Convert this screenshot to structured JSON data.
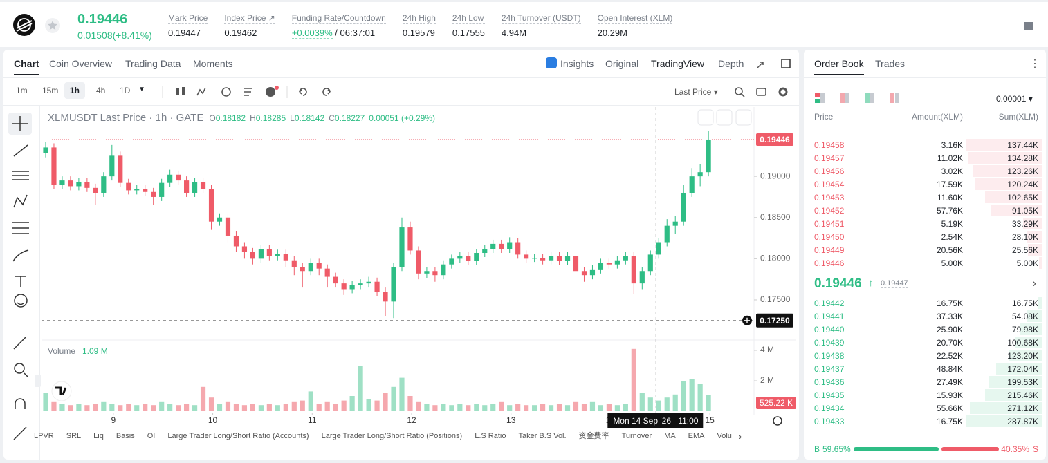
{
  "header": {
    "price": "0.19446",
    "change": "0.01508(+8.41%)",
    "stats": [
      {
        "label": "Mark Price",
        "value": "0.19447"
      },
      {
        "label": "Index Price ↗",
        "value": "0.19462"
      },
      {
        "label": "Funding Rate/Countdown",
        "value": "+0.0039%",
        "extra": " / 06:37:01"
      },
      {
        "label": "24h High",
        "value": "0.19579"
      },
      {
        "label": "24h Low",
        "value": "0.17555"
      },
      {
        "label": "24h Turnover (USDT)",
        "value": "4.94M"
      },
      {
        "label": "Open Interest (XLM)",
        "value": "20.29M"
      }
    ]
  },
  "chart_tabs": [
    "Chart",
    "Coin Overview",
    "Trading Data",
    "Moments"
  ],
  "view_tabs": [
    "Insights",
    "Original",
    "TradingView",
    "Depth"
  ],
  "intervals": [
    "1m",
    "15m",
    "1h",
    "4h",
    "1D"
  ],
  "price_source": "Last Price",
  "indicators": [
    "LPVR",
    "SRL",
    "Liq",
    "Basis",
    "OI",
    "Large Trader Long/Short Ratio (Accounts)",
    "Large Trader Long/Short Ratio (Positions)",
    "L.S Ratio",
    "Taker B.S Vol.",
    "资金费率",
    "Turnover",
    "MA",
    "EMA",
    "Volu"
  ],
  "chart_data": {
    "type": "candlestick",
    "title": "XLMUSDT Last Price · 1h · GATE",
    "ohlc_legend": [
      {
        "label": "O",
        "value": "0.18182"
      },
      {
        "label": "H",
        "value": "0.18285"
      },
      {
        "label": "L",
        "value": "0.18142"
      },
      {
        "label": "C",
        "value": "0.18227"
      }
    ],
    "legend_change": "0.00051 (+0.29%)",
    "up_color": "#2ebd85",
    "down_color": "#ef5b68",
    "open": [
      0.1928,
      0.1935,
      0.189,
      0.1895,
      0.1888,
      0.1893,
      0.1886,
      0.188,
      0.19,
      0.1925,
      0.1892,
      0.1883,
      0.1885,
      0.1881,
      0.1875,
      0.1892,
      0.1902,
      0.1895,
      0.188,
      0.1893,
      0.1885,
      0.1845,
      0.185,
      0.1828,
      0.1815,
      0.1808,
      0.18,
      0.1812,
      0.1803,
      0.1806,
      0.1798,
      0.179,
      0.1785,
      0.1795,
      0.1788,
      0.1778,
      0.177,
      0.1763,
      0.1768,
      0.177,
      0.1772,
      0.176,
      0.1748,
      0.179,
      0.1838,
      0.181,
      0.1782,
      0.1785,
      0.178,
      0.1793,
      0.18,
      0.1803,
      0.1797,
      0.1807,
      0.1812,
      0.1818,
      0.1812,
      0.182,
      0.1805,
      0.18,
      0.1801,
      0.1798,
      0.1803,
      0.1797,
      0.1803,
      0.1785,
      0.178,
      0.1787,
      0.1795,
      0.1793,
      0.1798,
      0.1803,
      0.177,
      0.1785,
      0.1805,
      0.182,
      0.184,
      0.1845,
      0.188,
      0.19,
      0.1905
    ],
    "high": [
      0.1942,
      0.194,
      0.19,
      0.19,
      0.1898,
      0.1898,
      0.1891,
      0.1905,
      0.1938,
      0.193,
      0.1897,
      0.189,
      0.189,
      0.1886,
      0.1897,
      0.1908,
      0.1907,
      0.19,
      0.1898,
      0.1898,
      0.189,
      0.1855,
      0.1855,
      0.1833,
      0.182,
      0.1813,
      0.1817,
      0.1817,
      0.1811,
      0.1811,
      0.1803,
      0.1795,
      0.18,
      0.18,
      0.1793,
      0.1783,
      0.1775,
      0.1773,
      0.1775,
      0.1778,
      0.1777,
      0.1765,
      0.1795,
      0.185,
      0.1845,
      0.1815,
      0.179,
      0.179,
      0.1798,
      0.1805,
      0.1808,
      0.1808,
      0.1812,
      0.1817,
      0.1823,
      0.1823,
      0.1826,
      0.1825,
      0.181,
      0.1806,
      0.1806,
      0.1808,
      0.1808,
      0.1808,
      0.1808,
      0.179,
      0.1792,
      0.18,
      0.18,
      0.1803,
      0.1808,
      0.1808,
      0.179,
      0.181,
      0.1825,
      0.1848,
      0.1852,
      0.189,
      0.191,
      0.1915,
      0.1955
    ],
    "low": [
      0.1923,
      0.1885,
      0.1885,
      0.1883,
      0.1883,
      0.1881,
      0.1865,
      0.1875,
      0.1895,
      0.1887,
      0.1878,
      0.1878,
      0.1876,
      0.1865,
      0.187,
      0.1887,
      0.189,
      0.1875,
      0.1875,
      0.188,
      0.1835,
      0.184,
      0.182,
      0.1808,
      0.18,
      0.1793,
      0.1795,
      0.1798,
      0.1798,
      0.179,
      0.178,
      0.1765,
      0.178,
      0.178,
      0.1765,
      0.1765,
      0.1756,
      0.1758,
      0.1763,
      0.1765,
      0.1755,
      0.173,
      0.1728,
      0.1785,
      0.1805,
      0.1775,
      0.1776,
      0.1772,
      0.1775,
      0.1788,
      0.1795,
      0.1792,
      0.1792,
      0.1802,
      0.1807,
      0.1807,
      0.1807,
      0.18,
      0.1795,
      0.1796,
      0.1793,
      0.1793,
      0.1792,
      0.1792,
      0.1778,
      0.1772,
      0.1775,
      0.1782,
      0.1788,
      0.1788,
      0.1793,
      0.1757,
      0.1763,
      0.178,
      0.18,
      0.1815,
      0.183,
      0.184,
      0.1875,
      0.1888,
      0.19
    ],
    "close": [
      0.1935,
      0.189,
      0.1895,
      0.1888,
      0.1893,
      0.1886,
      0.188,
      0.19,
      0.1925,
      0.1892,
      0.1883,
      0.1885,
      0.1881,
      0.1875,
      0.1892,
      0.1902,
      0.1895,
      0.188,
      0.1893,
      0.1885,
      0.1845,
      0.185,
      0.1828,
      0.1815,
      0.1808,
      0.18,
      0.1812,
      0.1803,
      0.1806,
      0.1798,
      0.179,
      0.1785,
      0.1795,
      0.1788,
      0.1778,
      0.177,
      0.1763,
      0.1768,
      0.177,
      0.1772,
      0.176,
      0.1748,
      0.179,
      0.1838,
      0.181,
      0.1782,
      0.1785,
      0.178,
      0.1793,
      0.18,
      0.1803,
      0.1797,
      0.1807,
      0.1812,
      0.1818,
      0.1812,
      0.182,
      0.1805,
      0.18,
      0.1801,
      0.1798,
      0.1803,
      0.1797,
      0.1803,
      0.1785,
      0.178,
      0.1787,
      0.1795,
      0.1793,
      0.1798,
      0.1803,
      0.177,
      0.1785,
      0.1805,
      0.182,
      0.184,
      0.1845,
      0.188,
      0.19,
      0.1905,
      0.19446
    ],
    "volume": [
      1.2,
      0.6,
      0.5,
      0.4,
      0.5,
      0.4,
      0.5,
      0.6,
      0.5,
      0.4,
      0.5,
      0.4,
      0.5,
      0.4,
      0.6,
      0.5,
      0.4,
      0.5,
      0.4,
      1.6,
      0.9,
      0.5,
      0.6,
      0.5,
      0.4,
      0.5,
      0.4,
      0.5,
      0.4,
      0.5,
      0.6,
      0.7,
      1.3,
      0.5,
      0.6,
      0.5,
      0.7,
      1.0,
      3.0,
      0.8,
      0.7,
      1.2,
      1.6,
      2.2,
      1.0,
      0.6,
      0.5,
      0.4,
      0.5,
      0.4,
      0.5,
      0.4,
      0.5,
      0.4,
      0.5,
      0.6,
      0.4,
      0.5,
      0.4,
      0.4,
      0.5,
      0.4,
      0.5,
      0.4,
      0.6,
      0.5,
      0.6,
      0.4,
      0.5,
      0.4,
      0.5,
      4.1,
      1.2,
      0.9,
      0.7,
      0.9,
      1.1,
      2.0,
      2.1,
      1.8,
      1.09
    ],
    "xlim": [
      -0.5,
      85.5
    ],
    "xticks": [
      {
        "value": 8.17,
        "label": "9"
      },
      {
        "value": 20.17,
        "label": "10"
      },
      {
        "value": 32.17,
        "label": "11"
      },
      {
        "value": 44.17,
        "label": "12"
      },
      {
        "value": 56.17,
        "label": "13"
      },
      {
        "value": 68.17,
        "label": "14"
      },
      {
        "value": 80.17,
        "label": "15"
      }
    ],
    "ylim": [
      0.1703,
      0.1984
    ],
    "yticks": [
      {
        "value": 0.175,
        "label": "0.17500"
      },
      {
        "value": 0.18,
        "label": "0.18000"
      },
      {
        "value": 0.185,
        "label": "0.18500"
      },
      {
        "value": 0.19,
        "label": "0.19000"
      }
    ],
    "volume_title": "Volume",
    "volume_label": "1.09 M",
    "vlim": [
      0,
      4.5
    ],
    "vticks": [
      {
        "value": 2,
        "label": "2 M"
      },
      {
        "value": 4,
        "label": "4 M"
      }
    ],
    "last_volume": "525.22 K",
    "last_price": {
      "value": 0.19446,
      "label": "0.19446"
    },
    "crosshair": {
      "x": 73.67,
      "price": {
        "value": 0.1725,
        "label": "0.17250"
      },
      "date": "Mon 14 Sep '26",
      "time": "11:00"
    }
  },
  "order_book": {
    "tabs": [
      "Order Book",
      "Trades"
    ],
    "precision": "0.00001",
    "columns": [
      "Price",
      "Amount(XLM)",
      "Sum(XLM)"
    ],
    "asks": [
      [
        "0.19458",
        "3.16K",
        "137.44K"
      ],
      [
        "0.19457",
        "11.02K",
        "134.28K"
      ],
      [
        "0.19456",
        "3.02K",
        "123.26K"
      ],
      [
        "0.19454",
        "17.59K",
        "120.24K"
      ],
      [
        "0.19453",
        "11.60K",
        "102.65K"
      ],
      [
        "0.19452",
        "57.76K",
        "91.05K"
      ],
      [
        "0.19451",
        "5.19K",
        "33.29K"
      ],
      [
        "0.19450",
        "2.54K",
        "28.10K"
      ],
      [
        "0.19449",
        "20.56K",
        "25.56K"
      ],
      [
        "0.19446",
        "5.00K",
        "5.00K"
      ]
    ],
    "mid_price": "0.19446",
    "mark_price": "0.19447",
    "bids": [
      [
        "0.19442",
        "16.75K",
        "16.75K"
      ],
      [
        "0.19441",
        "37.33K",
        "54.08K"
      ],
      [
        "0.19440",
        "25.90K",
        "79.98K"
      ],
      [
        "0.19439",
        "20.70K",
        "100.68K"
      ],
      [
        "0.19438",
        "22.52K",
        "123.20K"
      ],
      [
        "0.19437",
        "48.84K",
        "172.04K"
      ],
      [
        "0.19436",
        "27.49K",
        "199.53K"
      ],
      [
        "0.19435",
        "15.93K",
        "215.46K"
      ],
      [
        "0.19434",
        "55.66K",
        "271.12K"
      ],
      [
        "0.19433",
        "16.75K",
        "287.87K"
      ]
    ],
    "buy_letter": "B",
    "sell_letter": "S",
    "buy": {
      "value": 59.65,
      "label": "59.65%"
    },
    "sell": {
      "value": 40.35,
      "label": "40.35%"
    }
  }
}
